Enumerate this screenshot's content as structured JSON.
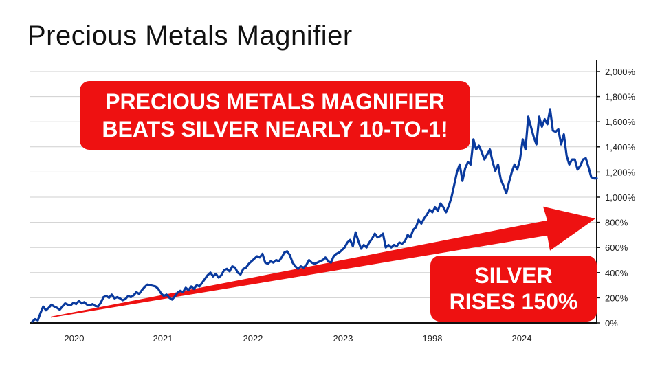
{
  "colors": {
    "series_line": "#0a3a9e",
    "arrow": "#ee1111",
    "callout_bg": "#ee1111",
    "callout_text": "#ffffff",
    "grid": "#cfcfcf",
    "axis": "#111111"
  },
  "callouts": {
    "top": [
      "PRECIOUS METALS MAGNIFIER",
      "BEATS SILVER NEARLY 10-TO-1!"
    ],
    "bottom": [
      "SILVER",
      "RISES 150%"
    ]
  },
  "chart_data": {
    "type": "line",
    "title": "Precious Metals Magnifier",
    "xlabel": "",
    "ylabel": "",
    "y_axis_side": "right",
    "ylim": [
      0,
      2000
    ],
    "y_ticks": [
      0,
      200,
      400,
      600,
      800,
      1000,
      1200,
      1400,
      1600,
      1800,
      2000
    ],
    "y_tick_labels": [
      "0%",
      "200%",
      "400%",
      "600%",
      "800%",
      "1,000%",
      "1,200%",
      "1,400%",
      "1,600%",
      "1,800%",
      "2,000%"
    ],
    "x_tick_labels": [
      "2020",
      "2021",
      "2022",
      "2023",
      "1998",
      "2024"
    ],
    "grid": true,
    "series": [
      {
        "values": [
          10,
          30,
          20,
          80,
          130,
          100,
          120,
          145,
          130,
          120,
          105,
          130,
          155,
          145,
          140,
          160,
          150,
          175,
          155,
          165,
          145,
          140,
          150,
          135,
          130,
          160,
          205,
          215,
          200,
          225,
          195,
          205,
          195,
          180,
          190,
          215,
          205,
          220,
          245,
          230,
          260,
          285,
          305,
          300,
          295,
          290,
          270,
          235,
          215,
          225,
          200,
          185,
          210,
          240,
          255,
          245,
          280,
          260,
          290,
          270,
          300,
          290,
          320,
          350,
          380,
          400,
          370,
          390,
          360,
          380,
          420,
          430,
          410,
          450,
          440,
          400,
          385,
          430,
          440,
          470,
          490,
          510,
          530,
          520,
          550,
          480,
          470,
          490,
          480,
          500,
          490,
          520,
          560,
          570,
          540,
          480,
          450,
          430,
          450,
          440,
          460,
          500,
          480,
          470,
          480,
          490,
          500,
          520,
          490,
          480,
          530,
          550,
          560,
          580,
          600,
          640,
          660,
          610,
          720,
          650,
          590,
          620,
          600,
          640,
          670,
          710,
          680,
          690,
          710,
          600,
          620,
          600,
          620,
          610,
          640,
          630,
          650,
          700,
          680,
          740,
          760,
          820,
          790,
          830,
          860,
          900,
          880,
          920,
          890,
          950,
          920,
          880,
          930,
          1000,
          1100,
          1200,
          1260,
          1130,
          1230,
          1280,
          1260,
          1460,
          1380,
          1410,
          1360,
          1300,
          1340,
          1380,
          1280,
          1210,
          1260,
          1140,
          1090,
          1030,
          1120,
          1200,
          1260,
          1220,
          1300,
          1460,
          1380,
          1640,
          1560,
          1480,
          1420,
          1640,
          1560,
          1620,
          1580,
          1700,
          1530,
          1520,
          1540,
          1420,
          1500,
          1330,
          1260,
          1300,
          1300,
          1220,
          1250,
          1300,
          1310,
          1240,
          1160,
          1150,
          1150
        ]
      }
    ],
    "trend_arrow": {
      "from_value": 50,
      "to_value": 830
    }
  }
}
